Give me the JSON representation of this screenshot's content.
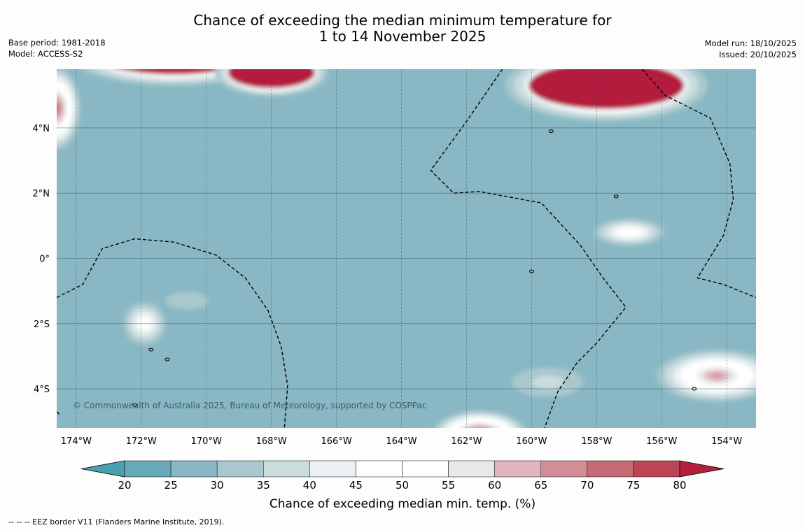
{
  "title": {
    "line1": "Chance of exceeding the median minimum temperature for",
    "line2": "1 to 14 November 2025"
  },
  "meta_left": {
    "base_period": "Base period: 1981-2018",
    "model": "Model: ACCESS-S2"
  },
  "meta_right": {
    "model_run": "Model run: 18/10/2025",
    "issued": "Issued: 20/10/2025"
  },
  "copyright": "© Commonwealth of Australia 2025, Bureau of Meteorology, supported by COSPPac",
  "map": {
    "lon_range": [
      -174.6,
      -153.1
    ],
    "lat_range": [
      -5.2,
      5.8
    ],
    "lon_ticks": [
      -174,
      -172,
      -170,
      -168,
      -166,
      -164,
      -162,
      -160,
      -158,
      -156,
      -154
    ],
    "lon_tick_labels": [
      "174°W",
      "172°W",
      "170°W",
      "168°W",
      "166°W",
      "164°W",
      "162°W",
      "160°W",
      "158°W",
      "156°W",
      "154°W"
    ],
    "lat_ticks": [
      4,
      2,
      0,
      -2,
      -4
    ],
    "lat_tick_labels": [
      "4°N",
      "2°N",
      "0°",
      "2°S",
      "4°S"
    ],
    "background_class": 25,
    "anomaly_regions": [
      {
        "region": "north-west",
        "lon": -171.0,
        "lat": 6.3,
        "rx": 3.6,
        "ry": 1.1,
        "peak": 82
      },
      {
        "region": "north-west-edge",
        "lon": -174.6,
        "lat": 4.6,
        "rx": 0.8,
        "ry": 1.4,
        "peak": 72
      },
      {
        "region": "north-central",
        "lon": -168.0,
        "lat": 5.7,
        "rx": 1.9,
        "ry": 0.8,
        "peak": 82
      },
      {
        "region": "north-east",
        "lon": -157.7,
        "lat": 5.3,
        "rx": 3.4,
        "ry": 1.2,
        "peak": 82
      },
      {
        "region": "south-west",
        "lon": -171.9,
        "lat": -2.0,
        "rx": 0.8,
        "ry": 0.8,
        "peak": 50
      },
      {
        "region": "south-west-plume",
        "lon": -170.6,
        "lat": -1.3,
        "rx": 1.5,
        "ry": 0.6,
        "peak": 32
      },
      {
        "region": "east-equatorial",
        "lon": -157.0,
        "lat": 0.8,
        "rx": 1.3,
        "ry": 0.5,
        "peak": 52
      },
      {
        "region": "south-central",
        "lon": -161.6,
        "lat": -5.4,
        "rx": 1.6,
        "ry": 0.8,
        "peak": 78
      },
      {
        "region": "south-east",
        "lon": -154.3,
        "lat": -3.6,
        "rx": 2.1,
        "ry": 0.9,
        "peak": 66
      },
      {
        "region": "south-east-plume",
        "lon": -159.5,
        "lat": -3.8,
        "rx": 1.7,
        "ry": 0.7,
        "peak": 37
      }
    ],
    "eez_border_segments": [
      [
        [
          -174.6,
          -1.2
        ],
        [
          -173.8,
          -0.8
        ],
        [
          -173.2,
          0.3
        ],
        [
          -172.2,
          0.6
        ],
        [
          -171.0,
          0.5
        ],
        [
          -169.7,
          0.1
        ],
        [
          -168.8,
          -0.6
        ],
        [
          -168.1,
          -1.6
        ],
        [
          -167.7,
          -2.7
        ],
        [
          -167.5,
          -3.9
        ],
        [
          -167.6,
          -5.2
        ]
      ],
      [
        [
          -174.6,
          -4.7
        ],
        [
          -174.5,
          -4.8
        ]
      ],
      [
        [
          -160.9,
          5.8
        ],
        [
          -162.0,
          4.2
        ],
        [
          -163.1,
          2.7
        ],
        [
          -162.4,
          2.0
        ],
        [
          -161.6,
          2.05
        ],
        [
          -159.7,
          1.7
        ],
        [
          -158.5,
          0.4
        ],
        [
          -157.8,
          -0.6
        ],
        [
          -157.1,
          -1.5
        ],
        [
          -158.0,
          -2.6
        ],
        [
          -158.6,
          -3.2
        ],
        [
          -159.2,
          -4.1
        ],
        [
          -159.6,
          -5.2
        ]
      ],
      [
        [
          -156.6,
          5.8
        ],
        [
          -155.9,
          5.0
        ],
        [
          -154.5,
          4.3
        ],
        [
          -153.9,
          2.9
        ],
        [
          -153.8,
          1.8
        ],
        [
          -154.1,
          0.7
        ],
        [
          -154.9,
          -0.6
        ],
        [
          -154.1,
          -0.8
        ],
        [
          -153.1,
          -1.2
        ]
      ]
    ],
    "islands": [
      {
        "lon": -159.4,
        "lat": 3.9
      },
      {
        "lon": -157.4,
        "lat": 1.9
      },
      {
        "lon": -171.7,
        "lat": -2.8
      },
      {
        "lon": -171.2,
        "lat": -3.1
      },
      {
        "lon": -172.2,
        "lat": -4.5
      },
      {
        "lon": -155.0,
        "lat": -4.0
      },
      {
        "lon": -160.0,
        "lat": -0.4
      }
    ]
  },
  "colorbar": {
    "tick_labels": [
      "20",
      "25",
      "30",
      "35",
      "40",
      "45",
      "50",
      "55",
      "60",
      "65",
      "70",
      "75",
      "80"
    ],
    "colors": [
      "#67a9b8",
      "#89b8c4",
      "#a9c8ce",
      "#cbdcdf",
      "#e9f1f2",
      "#ffffff",
      "#ffffff",
      "#e9e9e9",
      "#e0b5bb",
      "#d28e96",
      "#c66a76",
      "#bb4556"
    ],
    "under_color": "#48a0b1",
    "over_color": "#b41f3c",
    "label": "Chance of exceeding median min. temp. (%)"
  },
  "footer": "--  --  -- EEZ border V11 (Flanders Marine Institute, 2019)."
}
